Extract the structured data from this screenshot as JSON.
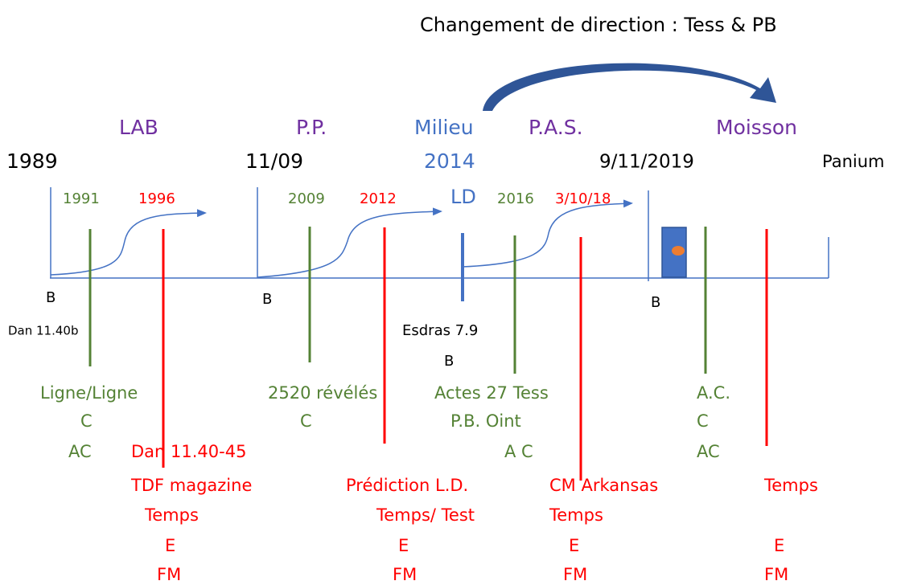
{
  "title": "Changement de direction : Tess & PB",
  "periods": [
    "LAB",
    "P.P.",
    "Milieu",
    "P.A.S.",
    "Moisson"
  ],
  "dates": [
    "1989",
    "11/09",
    "2014",
    "9/11/2019",
    "Panium"
  ],
  "events": [
    "1991",
    "1996",
    "2009",
    "2012",
    "LD",
    "2016",
    "3/10/18"
  ],
  "bases": [
    "B",
    "B",
    "B",
    "B"
  ],
  "references": [
    "Dan 11.40b",
    "Esdras 7.9"
  ],
  "green_notes": [
    [
      "Ligne/Ligne",
      "C",
      "AC"
    ],
    [
      "2520 révélés",
      "C"
    ],
    [
      "Actes 27 Tess",
      "P.B. Oint",
      "A C"
    ],
    [
      "A.C.",
      "C",
      "AC"
    ]
  ],
  "red_notes": [
    [
      "Dan 11.40-45",
      "TDF magazine",
      "Temps",
      "E",
      "FM"
    ],
    [
      "Prédiction L.D.",
      "Temps/ Test",
      "E",
      "FM"
    ],
    [
      "CM Arkansas",
      "Temps",
      "E",
      "FM"
    ],
    [
      "Temps",
      "E",
      "FM"
    ]
  ]
}
